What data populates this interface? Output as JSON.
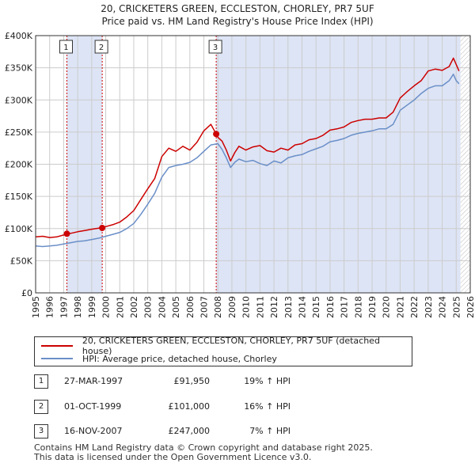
{
  "title_line1": "20, CRICKETERS GREEN, ECCLESTON, CHORLEY, PR7 5UF",
  "title_line2": "Price paid vs. HM Land Registry's House Price Index (HPI)",
  "colors": {
    "price": "#cc0000",
    "hpi": "#6a8fc8",
    "shade": "#dde4f5",
    "grid": "#cccccc",
    "marker_line": "#cc0000"
  },
  "legend": {
    "price_label": "20, CRICKETERS GREEN, ECCLESTON, CHORLEY, PR7 5UF (detached house)",
    "hpi_label": "HPI: Average price, detached house, Chorley"
  },
  "sales": [
    {
      "num": "1",
      "date": "27-MAR-1997",
      "price": "£91,950",
      "hpi": "19% ↑ HPI"
    },
    {
      "num": "2",
      "date": "01-OCT-1999",
      "price": "£101,000",
      "hpi": "16% ↑ HPI"
    },
    {
      "num": "3",
      "date": "16-NOV-2007",
      "price": "£247,000",
      "hpi": "7% ↑ HPI"
    }
  ],
  "footer_line1": "Contains HM Land Registry data © Crown copyright and database right 2025.",
  "footer_line2": "This data is licensed under the Open Government Licence v3.0.",
  "chart_data": {
    "type": "line",
    "title": "20, CRICKETERS GREEN, ECCLESTON, CHORLEY, PR7 5UF",
    "subtitle": "Price paid vs. HM Land Registry's House Price Index (HPI)",
    "xlabel": "",
    "ylabel": "",
    "xlim": [
      1995,
      2026
    ],
    "ylim": [
      0,
      400000
    ],
    "x_ticks": [
      "1995",
      "1996",
      "1997",
      "1998",
      "1999",
      "2000",
      "2001",
      "2002",
      "2003",
      "2004",
      "2005",
      "2006",
      "2007",
      "2008",
      "2009",
      "2010",
      "2011",
      "2012",
      "2013",
      "2014",
      "2015",
      "2016",
      "2017",
      "2018",
      "2019",
      "2020",
      "2021",
      "2022",
      "2023",
      "2024",
      "2025",
      "2026"
    ],
    "y_ticks": [
      {
        "value": 0,
        "label": "£0"
      },
      {
        "value": 50000,
        "label": "£50K"
      },
      {
        "value": 100000,
        "label": "£100K"
      },
      {
        "value": 150000,
        "label": "£150K"
      },
      {
        "value": 200000,
        "label": "£200K"
      },
      {
        "value": 250000,
        "label": "£250K"
      },
      {
        "value": 300000,
        "label": "£300K"
      },
      {
        "value": 350000,
        "label": "£350K"
      },
      {
        "value": 400000,
        "label": "£400K"
      }
    ],
    "grid": true,
    "shaded_periods": [
      [
        1997.23,
        1999.75
      ],
      [
        2007.88,
        2025.3
      ]
    ],
    "hatched_from": 2025.3,
    "sale_markers": [
      {
        "label": "1",
        "x": 1997.23,
        "y": 91950
      },
      {
        "label": "2",
        "x": 1999.75,
        "y": 101000
      },
      {
        "label": "3",
        "x": 2007.88,
        "y": 247000
      }
    ],
    "series": [
      {
        "name": "20, CRICKETERS GREEN, ECCLESTON, CHORLEY, PR7 5UF (detached house)",
        "x": [
          1995,
          1995.5,
          1996,
          1996.5,
          1997,
          1997.23,
          1997.5,
          1998,
          1998.5,
          1999,
          1999.5,
          1999.75,
          2000,
          2000.5,
          2001,
          2001.5,
          2002,
          2002.5,
          2003,
          2003.5,
          2004,
          2004.5,
          2005,
          2005.5,
          2006,
          2006.5,
          2007,
          2007.5,
          2007.88,
          2008,
          2008.3,
          2008.6,
          2008.9,
          2009.2,
          2009.5,
          2010,
          2010.5,
          2011,
          2011.5,
          2012,
          2012.5,
          2013,
          2013.5,
          2014,
          2014.5,
          2015,
          2015.5,
          2016,
          2016.5,
          2017,
          2017.5,
          2018,
          2018.5,
          2019,
          2019.5,
          2020,
          2020.5,
          2021,
          2021.5,
          2022,
          2022.5,
          2023,
          2023.5,
          2024,
          2024.5,
          2024.8,
          2025,
          2025.2
        ],
        "values": [
          87000,
          88000,
          86000,
          87000,
          90000,
          91950,
          92500,
          95000,
          97000,
          99000,
          100500,
          101000,
          103000,
          106000,
          110000,
          118000,
          128000,
          145000,
          162000,
          178000,
          212000,
          225000,
          220000,
          228000,
          222000,
          234000,
          252000,
          262000,
          247000,
          242000,
          236000,
          222000,
          205000,
          218000,
          228000,
          222000,
          227000,
          229000,
          221000,
          219000,
          225000,
          222000,
          230000,
          232000,
          238000,
          240000,
          245000,
          253000,
          255000,
          258000,
          265000,
          268000,
          270000,
          270000,
          272000,
          272000,
          281000,
          303000,
          313000,
          322000,
          330000,
          345000,
          348000,
          346000,
          352000,
          365000,
          355000,
          345000
        ]
      },
      {
        "name": "HPI: Average price, detached house, Chorley",
        "x": [
          1995,
          1995.5,
          1996,
          1996.5,
          1997,
          1997.5,
          1998,
          1998.5,
          1999,
          1999.5,
          2000,
          2000.5,
          2001,
          2001.5,
          2002,
          2002.5,
          2003,
          2003.5,
          2004,
          2004.5,
          2005,
          2005.5,
          2006,
          2006.5,
          2007,
          2007.5,
          2008,
          2008.3,
          2008.6,
          2008.9,
          2009.2,
          2009.5,
          2010,
          2010.5,
          2011,
          2011.5,
          2012,
          2012.5,
          2013,
          2013.5,
          2014,
          2014.5,
          2015,
          2015.5,
          2016,
          2016.5,
          2017,
          2017.5,
          2018,
          2018.5,
          2019,
          2019.5,
          2020,
          2020.5,
          2021,
          2021.5,
          2022,
          2022.5,
          2023,
          2023.5,
          2024,
          2024.5,
          2024.8,
          2025,
          2025.2
        ],
        "values": [
          73000,
          72000,
          73000,
          74000,
          76000,
          78000,
          80000,
          81000,
          83000,
          85000,
          88000,
          91000,
          94000,
          100000,
          108000,
          122000,
          138000,
          155000,
          180000,
          195000,
          198000,
          200000,
          203000,
          210000,
          220000,
          230000,
          232000,
          223000,
          210000,
          195000,
          203000,
          208000,
          204000,
          206000,
          201000,
          198000,
          205000,
          202000,
          210000,
          213000,
          215000,
          220000,
          224000,
          228000,
          235000,
          237000,
          240000,
          245000,
          248000,
          250000,
          252000,
          255000,
          255000,
          262000,
          284000,
          292000,
          300000,
          310000,
          318000,
          322000,
          322000,
          330000,
          340000,
          330000,
          325000
        ]
      }
    ]
  }
}
